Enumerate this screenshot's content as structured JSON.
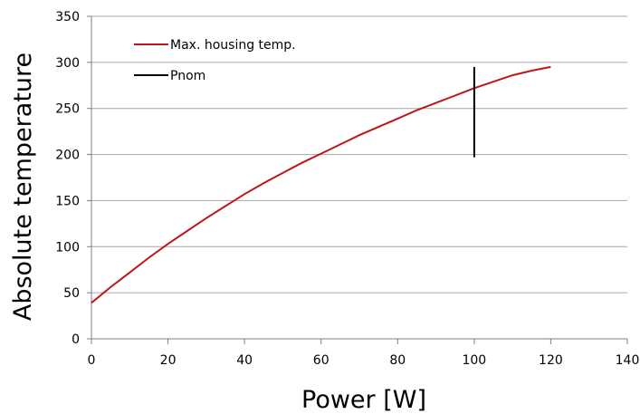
{
  "chart_data": {
    "type": "line",
    "xlabel": "Power [W]",
    "ylabel": "Absolute temperature",
    "xlim": [
      0,
      140
    ],
    "ylim": [
      0,
      350
    ],
    "xticks": [
      0,
      20,
      40,
      60,
      80,
      100,
      120,
      140
    ],
    "yticks": [
      0,
      50,
      100,
      150,
      200,
      250,
      300,
      350
    ],
    "grid": "horizontal",
    "legend_position": "top-left",
    "series": [
      {
        "name": "Max. housing temp.",
        "color": "#c0141c",
        "x": [
          0,
          5,
          10,
          15,
          20,
          25,
          30,
          35,
          40,
          45,
          50,
          55,
          60,
          65,
          70,
          75,
          80,
          85,
          90,
          95,
          100,
          105,
          110,
          115,
          120
        ],
        "y": [
          39,
          56,
          72,
          88,
          103,
          117,
          131,
          144,
          157,
          169,
          180,
          191,
          201,
          211,
          221,
          230,
          239,
          248,
          256,
          264,
          272,
          279,
          286,
          291,
          295
        ]
      },
      {
        "name": "Pnom",
        "color": "#000000",
        "x": [
          100,
          100
        ],
        "y": [
          197,
          295
        ]
      }
    ]
  }
}
